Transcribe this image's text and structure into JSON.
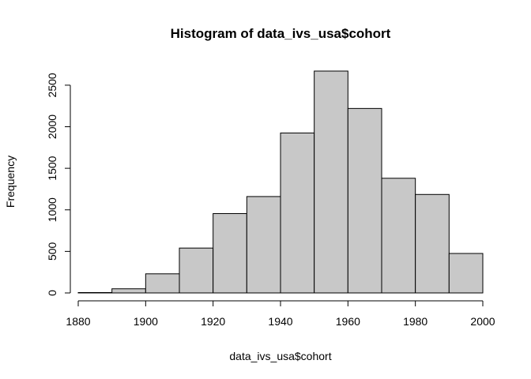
{
  "chart_data": {
    "type": "bar",
    "title": "Histogram of data_ivs_usa$cohort",
    "xlabel": "data_ivs_usa$cohort",
    "ylabel": "Frequency",
    "bins": [
      {
        "start": 1880,
        "end": 1890,
        "value": 5
      },
      {
        "start": 1890,
        "end": 1900,
        "value": 50
      },
      {
        "start": 1900,
        "end": 1910,
        "value": 230
      },
      {
        "start": 1910,
        "end": 1920,
        "value": 540
      },
      {
        "start": 1920,
        "end": 1930,
        "value": 955
      },
      {
        "start": 1930,
        "end": 1940,
        "value": 1160
      },
      {
        "start": 1940,
        "end": 1950,
        "value": 1925
      },
      {
        "start": 1950,
        "end": 1960,
        "value": 2670
      },
      {
        "start": 1960,
        "end": 1970,
        "value": 2220
      },
      {
        "start": 1970,
        "end": 1980,
        "value": 1380
      },
      {
        "start": 1980,
        "end": 1990,
        "value": 1185
      },
      {
        "start": 1990,
        "end": 2000,
        "value": 475
      }
    ],
    "x_ticks": [
      1880,
      1900,
      1920,
      1940,
      1960,
      1980,
      2000
    ],
    "y_ticks": [
      0,
      500,
      1000,
      1500,
      2000,
      2500
    ],
    "xlim": [
      1880,
      2000
    ],
    "ylim": [
      0,
      2670
    ],
    "bar_color": "#c8c8c8",
    "edge_color": "#000000",
    "grid": false
  }
}
